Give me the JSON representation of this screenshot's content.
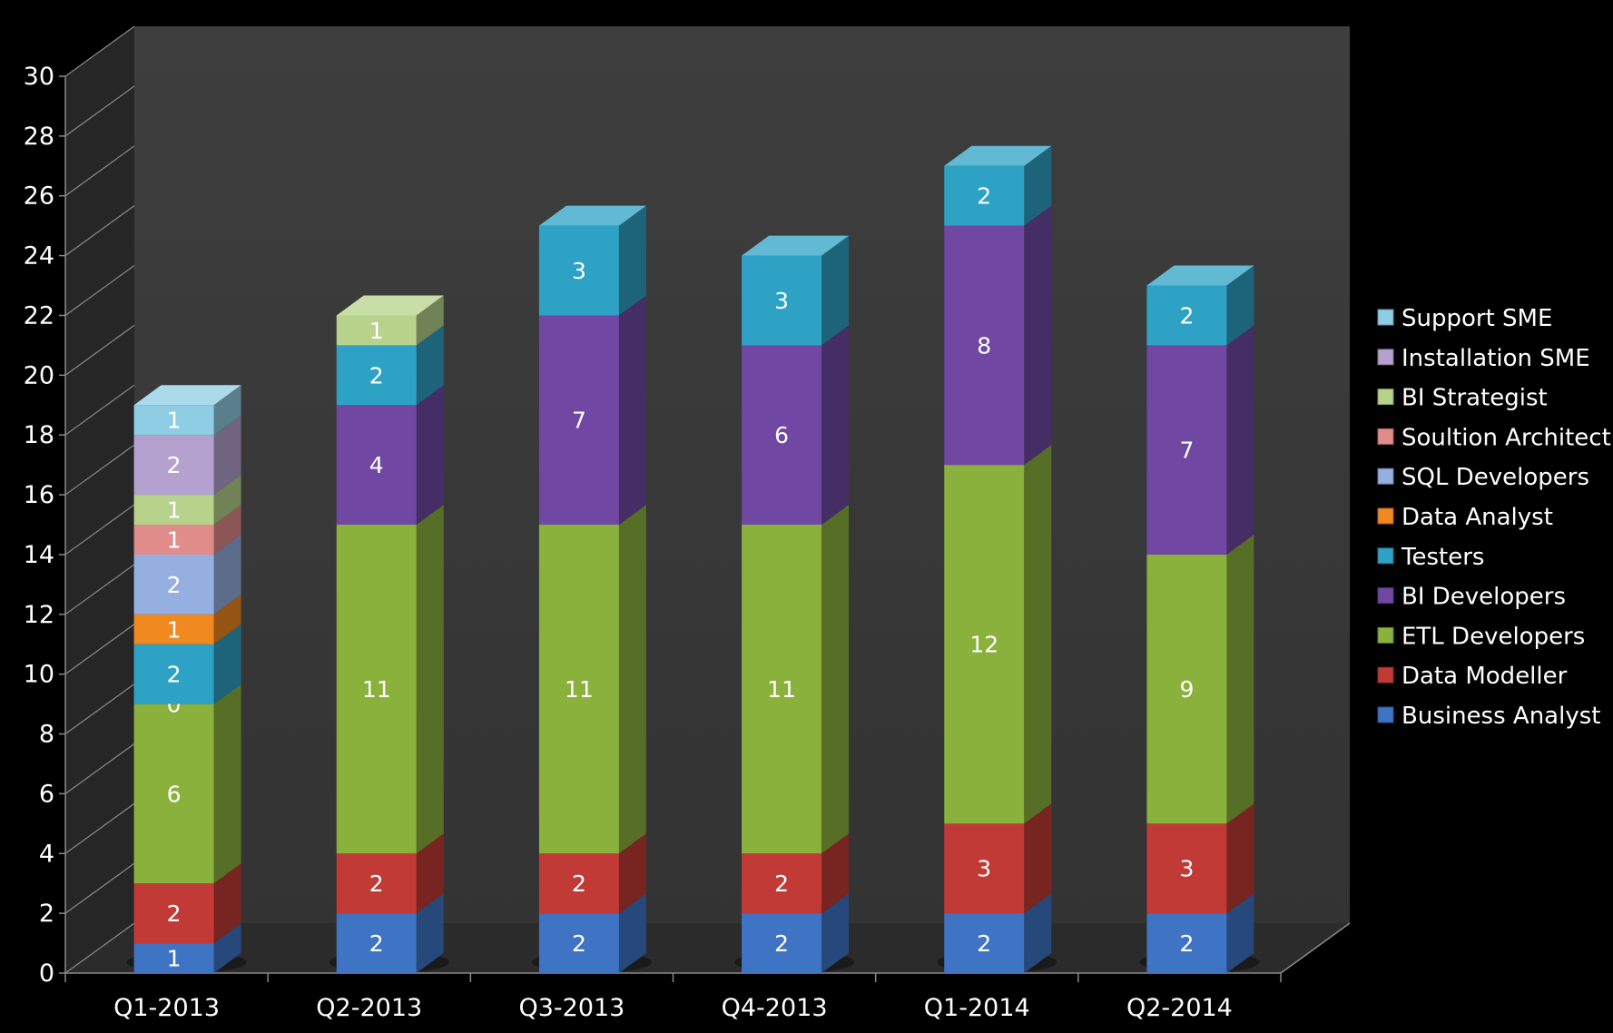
{
  "chart_data": {
    "type": "bar",
    "stacked": true,
    "three_d": true,
    "categories": [
      "Q1-2013",
      "Q2-2013",
      "Q3-2013",
      "Q4-2013",
      "Q1-2014",
      "Q2-2014"
    ],
    "ylim": [
      0,
      30
    ],
    "y_ticks": [
      "0",
      "2",
      "4",
      "6",
      "8",
      "10",
      "12",
      "14",
      "16",
      "18",
      "20",
      "22",
      "24",
      "26",
      "28",
      "30"
    ],
    "legend_position": "right",
    "series": [
      {
        "name": "Business Analyst",
        "color": "#3f74c4",
        "values": [
          1,
          2,
          2,
          2,
          2,
          2
        ]
      },
      {
        "name": "Data Modeller",
        "color": "#c23a36",
        "values": [
          2,
          2,
          2,
          2,
          3,
          3
        ]
      },
      {
        "name": "ETL Developers",
        "color": "#8ab13c",
        "values": [
          6,
          11,
          11,
          11,
          12,
          9
        ]
      },
      {
        "name": "BI Developers",
        "color": "#7048a3",
        "values": [
          0,
          4,
          7,
          6,
          8,
          7
        ]
      },
      {
        "name": "Testers",
        "color": "#2ea2c4",
        "values": [
          2,
          2,
          3,
          3,
          2,
          2
        ]
      },
      {
        "name": "Data Analyst",
        "color": "#f0891e",
        "values": [
          1,
          null,
          null,
          null,
          null,
          null
        ]
      },
      {
        "name": "SQL Developers",
        "color": "#95afe0",
        "values": [
          2,
          null,
          null,
          null,
          null,
          null
        ]
      },
      {
        "name": "Soultion Architect",
        "color": "#e08c8a",
        "values": [
          1,
          null,
          null,
          null,
          null,
          null
        ]
      },
      {
        "name": "BI Strategist",
        "color": "#b7d28a",
        "values": [
          1,
          1,
          null,
          null,
          null,
          null
        ]
      },
      {
        "name": "Installation SME",
        "color": "#b4a1cf",
        "values": [
          2,
          null,
          null,
          null,
          null,
          null
        ]
      },
      {
        "name": "Support SME",
        "color": "#8fcde4",
        "values": [
          1,
          null,
          null,
          null,
          null,
          null
        ]
      }
    ]
  }
}
